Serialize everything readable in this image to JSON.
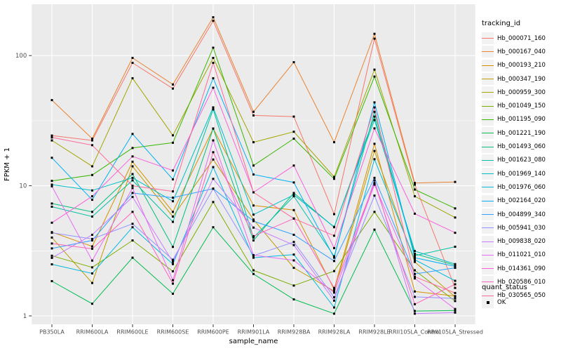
{
  "figure": {
    "x_axis": {
      "label": "sample_name"
    },
    "y_axis": {
      "label": "FPKM + 1",
      "tick_labels": [
        "100",
        "10",
        "1"
      ],
      "tick_values": [
        100,
        10,
        1
      ]
    },
    "legend": {
      "tracking_title": "tracking_id",
      "quant_title": "quant_status",
      "quant_entries": [
        {
          "label": "OK"
        }
      ]
    },
    "panel_color": "#EBEBEB",
    "grid_color": "#FFFFFF",
    "tick_label_color": "#4D4D4D",
    "point_color": "#000000"
  },
  "chart_data": {
    "type": "line",
    "x_categories": [
      "PB350LA",
      "RRIM600LA",
      "RRIM600LE",
      "RRIM600SE",
      "RRIM600PE",
      "RRIM901LA",
      "RRIM928BA",
      "RRIM928LA",
      "RRIM928LE",
      "RRII105LA_Control",
      "RRII105LA_Stressed"
    ],
    "xlabel": "sample_name",
    "ylabel": "FPKM + 1",
    "y_scale": "log10",
    "ylim": [
      0.86,
      250
    ],
    "y_major_gridlines": [
      1,
      10,
      100
    ],
    "y_minor_gridlines": [
      3.162,
      31.62
    ],
    "legend_position": "right",
    "quant_status_all_points": "OK",
    "series": [
      {
        "name": "Hb_000071_160",
        "color": "#F8766D",
        "values": [
          24.3,
          22.3,
          88,
          55.8,
          185,
          34.7,
          34,
          6.05,
          135,
          10.2,
          1.64
        ]
      },
      {
        "name": "Hb_000167_040",
        "color": "#EA8331",
        "values": [
          45.5,
          23.0,
          96,
          60,
          197,
          37,
          89,
          21.6,
          147,
          10.5,
          10.7
        ]
      },
      {
        "name": "Hb_000193_210",
        "color": "#D89000",
        "values": [
          4.4,
          3.42,
          15.3,
          6.3,
          27.5,
          7.05,
          6.5,
          1.6,
          21,
          1.54,
          1.42
        ]
      },
      {
        "name": "Hb_000347_190",
        "color": "#C09B00",
        "values": [
          4.0,
          1.79,
          14.1,
          5.8,
          15.9,
          5.5,
          2.34,
          1.55,
          18.5,
          2.6,
          1.4
        ]
      },
      {
        "name": "Hb_000959_300",
        "color": "#A3A500",
        "values": [
          22.3,
          14.1,
          67,
          24.4,
          96,
          21.6,
          26,
          11.7,
          78,
          8.3,
          5.7
        ]
      },
      {
        "name": "Hb_001049_150",
        "color": "#7CAE00",
        "values": [
          2.9,
          2.36,
          3.8,
          2.2,
          7.5,
          2.24,
          1.71,
          2.21,
          6.3,
          2.24,
          1.3
        ]
      },
      {
        "name": "Hb_001195_090",
        "color": "#39B600",
        "values": [
          10.9,
          12.1,
          19.5,
          21.4,
          115,
          14.3,
          23,
          11.3,
          69,
          9.35,
          6.7
        ]
      },
      {
        "name": "Hb_001221_190",
        "color": "#00BB4E",
        "values": [
          1.85,
          1.24,
          2.8,
          1.48,
          4.8,
          2.1,
          1.34,
          1.04,
          4.6,
          1.09,
          1.1
        ]
      },
      {
        "name": "Hb_001493_060",
        "color": "#00BF7D",
        "values": [
          7.3,
          6.3,
          12.3,
          3.39,
          27.5,
          3.8,
          8.8,
          4.8,
          34,
          3.0,
          2.45
        ]
      },
      {
        "name": "Hb_001623_080",
        "color": "#00C1A3",
        "values": [
          6.9,
          5.8,
          11.0,
          5.28,
          38.6,
          4.0,
          8.3,
          2.87,
          37,
          2.9,
          3.4
        ]
      },
      {
        "name": "Hb_001969_140",
        "color": "#00BFC4",
        "values": [
          10.2,
          9.2,
          11.5,
          7.6,
          40,
          6.0,
          8.5,
          4.83,
          32,
          3.15,
          2.5
        ]
      },
      {
        "name": "Hb_001976_060",
        "color": "#00BAE0",
        "values": [
          2.49,
          2.12,
          4.8,
          2.5,
          13.9,
          2.8,
          2.96,
          1.16,
          16,
          2.7,
          1.86
        ]
      },
      {
        "name": "Hb_002164_020",
        "color": "#00B0F6",
        "values": [
          16.4,
          7.8,
          25,
          11.2,
          67,
          12.2,
          10.6,
          2.8,
          43.7,
          2.8,
          2.4
        ]
      },
      {
        "name": "Hb_004899_340",
        "color": "#35A2FF",
        "values": [
          3.3,
          3.8,
          8.8,
          8.1,
          9.5,
          5.35,
          4.2,
          2.64,
          11.5,
          2.1,
          2.34
        ]
      },
      {
        "name": "Hb_005941_030",
        "color": "#9590FF",
        "values": [
          4.35,
          3.9,
          5.1,
          2.7,
          9.5,
          2.9,
          3.7,
          1.39,
          8.4,
          1.4,
          1.36
        ]
      },
      {
        "name": "Hb_009838_020",
        "color": "#C77CFF",
        "values": [
          2.79,
          4.2,
          8.2,
          2.6,
          11.3,
          4.77,
          3.5,
          1.31,
          11.0,
          1.04,
          1.06
        ]
      },
      {
        "name": "Hb_011021_010",
        "color": "#E76BF3",
        "values": [
          9.9,
          2.66,
          9.6,
          1.88,
          22.3,
          2.93,
          2.67,
          1.51,
          10.2,
          1.94,
          1.13
        ]
      },
      {
        "name": "Hb_014361_090",
        "color": "#FA62DB",
        "values": [
          5.2,
          8.3,
          16.8,
          13.1,
          56.6,
          8.9,
          14.3,
          3.32,
          27.6,
          6.1,
          4.35
        ]
      },
      {
        "name": "Hb_020586_010",
        "color": "#FF62BC",
        "values": [
          3.6,
          3.28,
          6.3,
          1.77,
          18.1,
          4.1,
          5.6,
          1.64,
          10.5,
          1.23,
          1.75
        ]
      },
      {
        "name": "Hb_030565_050",
        "color": "#FF6A98",
        "values": [
          23.5,
          20.5,
          10.0,
          9.05,
          88,
          8.9,
          5.6,
          4.13,
          40,
          2.0,
          1.5
        ]
      }
    ]
  }
}
